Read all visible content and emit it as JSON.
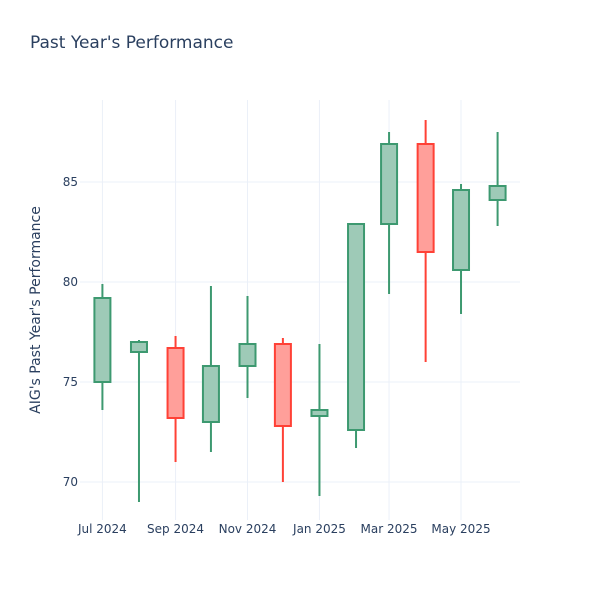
{
  "chart_data": {
    "type": "candlestick",
    "title": "Past Year's Performance",
    "xlabel": "",
    "ylabel": "AIG's Past Year's Performance",
    "x_tick_labels": [
      "Jul 2024",
      "Sep 2024",
      "Nov 2024",
      "Jan 2025",
      "Mar 2025",
      "May 2025"
    ],
    "x_tick_dates": [
      "2024-07-01",
      "2024-09-01",
      "2024-11-01",
      "2025-01-01",
      "2025-03-01",
      "2025-05-01"
    ],
    "y_ticks": [
      70,
      75,
      80,
      85
    ],
    "xlim": [
      "2024-06-12",
      "2025-06-20"
    ],
    "ylim": [
      68.1,
      89.1
    ],
    "grid": true,
    "increasing_color": "#3d9970",
    "increasing_fill": "#9ecab7",
    "decreasing_color": "#ff4136",
    "decreasing_fill": "#ff9f9a",
    "candles": [
      {
        "date": "2024-07-01",
        "open": 75.0,
        "high": 79.9,
        "low": 73.6,
        "close": 79.2
      },
      {
        "date": "2024-08-01",
        "open": 76.5,
        "high": 77.1,
        "low": 69.0,
        "close": 77.0
      },
      {
        "date": "2024-09-01",
        "open": 76.7,
        "high": 77.3,
        "low": 71.0,
        "close": 73.2
      },
      {
        "date": "2024-10-01",
        "open": 73.0,
        "high": 79.8,
        "low": 71.5,
        "close": 75.8
      },
      {
        "date": "2024-11-01",
        "open": 75.8,
        "high": 79.3,
        "low": 74.2,
        "close": 76.9
      },
      {
        "date": "2024-12-01",
        "open": 76.9,
        "high": 77.2,
        "low": 70.0,
        "close": 72.8
      },
      {
        "date": "2025-01-01",
        "open": 73.3,
        "high": 76.9,
        "low": 69.3,
        "close": 73.6
      },
      {
        "date": "2025-02-01",
        "open": 72.6,
        "high": 82.9,
        "low": 71.7,
        "close": 82.9
      },
      {
        "date": "2025-03-01",
        "open": 82.9,
        "high": 87.5,
        "low": 79.4,
        "close": 86.9
      },
      {
        "date": "2025-04-01",
        "open": 86.9,
        "high": 88.1,
        "low": 76.0,
        "close": 81.5
      },
      {
        "date": "2025-05-01",
        "open": 80.6,
        "high": 84.9,
        "low": 78.4,
        "close": 84.6
      },
      {
        "date": "2025-06-01",
        "open": 84.1,
        "high": 87.5,
        "low": 82.8,
        "close": 84.8
      }
    ]
  }
}
